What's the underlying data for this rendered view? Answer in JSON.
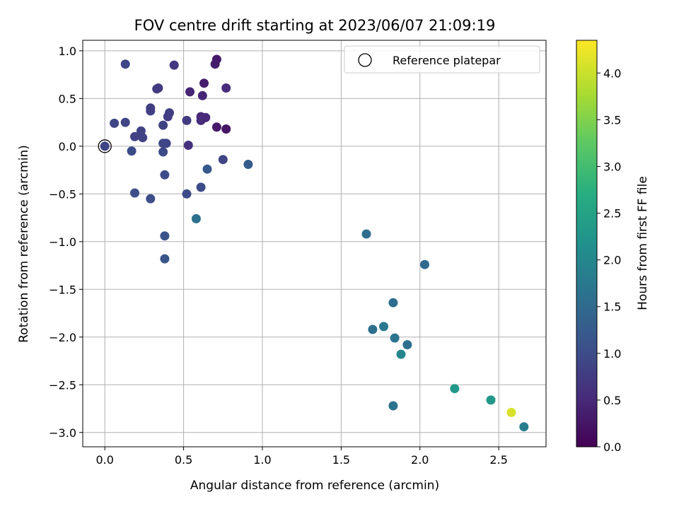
{
  "chart_data": {
    "type": "scatter",
    "title": "FOV centre drift starting at 2023/06/07 21:09:19",
    "xlabel": "Angular distance from reference (arcmin)",
    "ylabel": "Rotation from reference (arcmin)",
    "xlim": [
      -0.14,
      2.8
    ],
    "ylim": [
      -3.15,
      1.11
    ],
    "x_ticks": [
      "0.0",
      "0.5",
      "1.0",
      "1.5",
      "2.0",
      "2.5"
    ],
    "y_ticks": [
      "1.0",
      "0.5",
      "0.0",
      "−0.5",
      "−1.0",
      "−1.5",
      "−2.0",
      "−2.5",
      "−3.0"
    ],
    "grid": true,
    "legend": {
      "position": "top-right",
      "entries": [
        {
          "label": "Reference platepar",
          "marker": "open-circle"
        }
      ]
    },
    "colorbar": {
      "label": "Hours from first FF file",
      "range": [
        0.0,
        4.35
      ],
      "ticks": [
        "0.0",
        "0.5",
        "1.0",
        "1.5",
        "2.0",
        "2.5",
        "3.0",
        "3.5",
        "4.0"
      ],
      "colormap": "viridis"
    },
    "reference_point": {
      "x": 0.0,
      "y": 0.0
    },
    "points": [
      {
        "x": 0.0,
        "y": 0.0,
        "c": 0.9
      },
      {
        "x": 0.06,
        "y": 0.24,
        "c": 0.9
      },
      {
        "x": 0.13,
        "y": 0.25,
        "c": 0.9
      },
      {
        "x": 0.13,
        "y": 0.86,
        "c": 0.9
      },
      {
        "x": 0.17,
        "y": -0.05,
        "c": 1.0
      },
      {
        "x": 0.19,
        "y": 0.1,
        "c": 0.85
      },
      {
        "x": 0.19,
        "y": -0.49,
        "c": 1.05
      },
      {
        "x": 0.23,
        "y": 0.16,
        "c": 0.85
      },
      {
        "x": 0.24,
        "y": 0.09,
        "c": 0.85
      },
      {
        "x": 0.29,
        "y": 0.4,
        "c": 0.8
      },
      {
        "x": 0.29,
        "y": 0.37,
        "c": 0.8
      },
      {
        "x": 0.29,
        "y": -0.55,
        "c": 1.05
      },
      {
        "x": 0.33,
        "y": 0.6,
        "c": 0.75
      },
      {
        "x": 0.34,
        "y": 0.61,
        "c": 0.75
      },
      {
        "x": 0.37,
        "y": 0.22,
        "c": 0.85
      },
      {
        "x": 0.37,
        "y": 0.03,
        "c": 0.9
      },
      {
        "x": 0.37,
        "y": -0.06,
        "c": 0.95
      },
      {
        "x": 0.38,
        "y": -0.3,
        "c": 1.0
      },
      {
        "x": 0.38,
        "y": -0.94,
        "c": 1.1
      },
      {
        "x": 0.38,
        "y": -1.18,
        "c": 1.15
      },
      {
        "x": 0.39,
        "y": 0.03,
        "c": 0.9
      },
      {
        "x": 0.4,
        "y": 0.31,
        "c": 0.8
      },
      {
        "x": 0.41,
        "y": 0.35,
        "c": 0.8
      },
      {
        "x": 0.44,
        "y": 0.85,
        "c": 0.7
      },
      {
        "x": 0.52,
        "y": 0.27,
        "c": 0.75
      },
      {
        "x": 0.52,
        "y": -0.5,
        "c": 1.0
      },
      {
        "x": 0.53,
        "y": 0.01,
        "c": 0.6
      },
      {
        "x": 0.54,
        "y": 0.57,
        "c": 0.45
      },
      {
        "x": 0.58,
        "y": -0.76,
        "c": 1.6
      },
      {
        "x": 0.61,
        "y": 0.31,
        "c": 0.5
      },
      {
        "x": 0.61,
        "y": 0.27,
        "c": 0.55
      },
      {
        "x": 0.61,
        "y": -0.43,
        "c": 1.0
      },
      {
        "x": 0.62,
        "y": 0.53,
        "c": 0.45
      },
      {
        "x": 0.63,
        "y": 0.66,
        "c": 0.35
      },
      {
        "x": 0.64,
        "y": 0.3,
        "c": 0.5
      },
      {
        "x": 0.65,
        "y": -0.24,
        "c": 1.2
      },
      {
        "x": 0.7,
        "y": 0.86,
        "c": 0.35
      },
      {
        "x": 0.71,
        "y": 0.91,
        "c": 0.3
      },
      {
        "x": 0.71,
        "y": 0.2,
        "c": 0.3
      },
      {
        "x": 0.75,
        "y": -0.14,
        "c": 0.9
      },
      {
        "x": 0.77,
        "y": 0.61,
        "c": 0.55
      },
      {
        "x": 0.77,
        "y": 0.18,
        "c": 0.25
      },
      {
        "x": 0.91,
        "y": -0.19,
        "c": 1.25
      },
      {
        "x": 1.66,
        "y": -0.92,
        "c": 1.55
      },
      {
        "x": 1.7,
        "y": -1.92,
        "c": 1.6
      },
      {
        "x": 1.77,
        "y": -1.89,
        "c": 1.75
      },
      {
        "x": 1.83,
        "y": -1.64,
        "c": 1.55
      },
      {
        "x": 1.83,
        "y": -2.72,
        "c": 1.65
      },
      {
        "x": 1.84,
        "y": -2.01,
        "c": 1.7
      },
      {
        "x": 1.88,
        "y": -2.18,
        "c": 2.0
      },
      {
        "x": 1.92,
        "y": -2.08,
        "c": 1.6
      },
      {
        "x": 2.03,
        "y": -1.24,
        "c": 1.5
      },
      {
        "x": 2.22,
        "y": -2.54,
        "c": 2.3
      },
      {
        "x": 2.45,
        "y": -2.66,
        "c": 2.3
      },
      {
        "x": 2.58,
        "y": -2.79,
        "c": 4.1
      },
      {
        "x": 2.66,
        "y": -2.94,
        "c": 1.85
      }
    ]
  }
}
